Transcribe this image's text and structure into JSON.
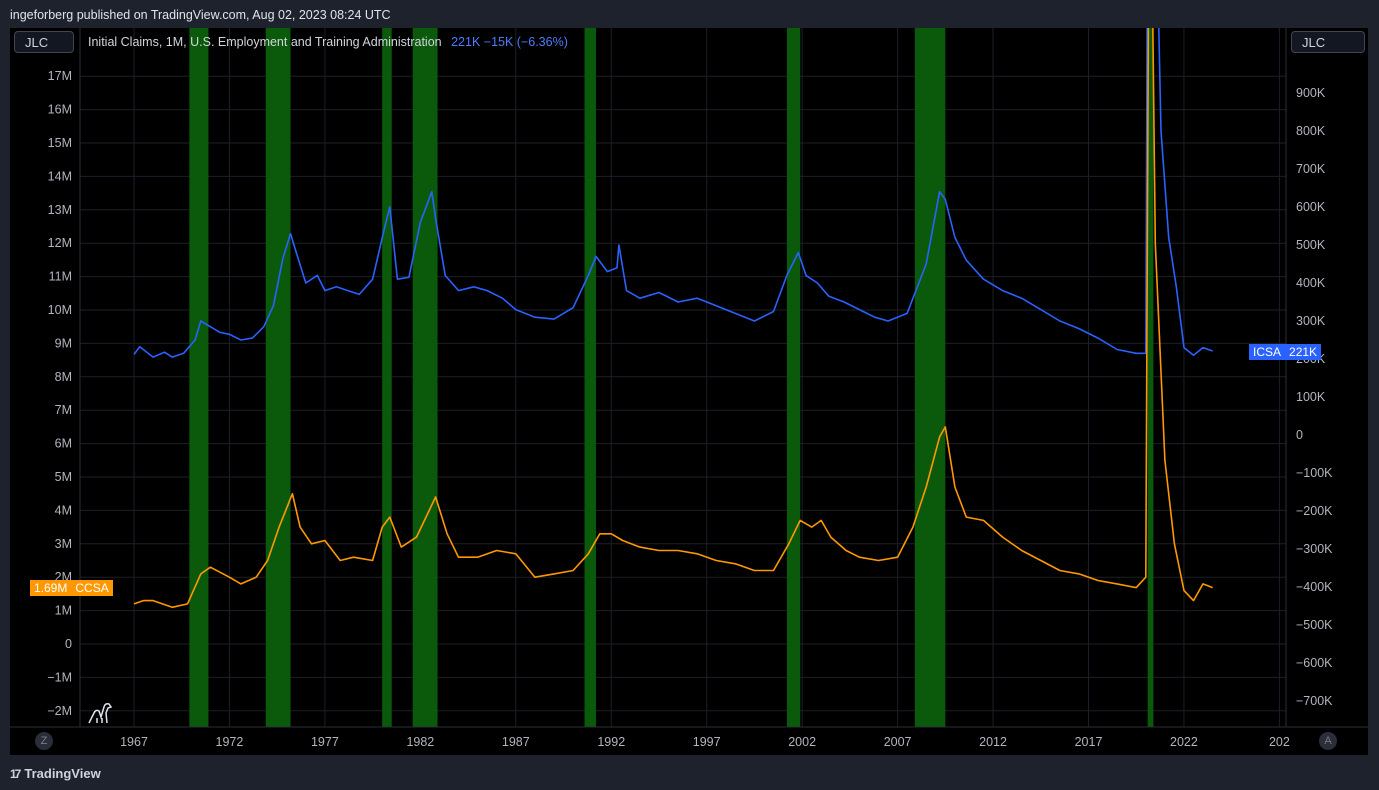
{
  "header": {
    "published": "ingeforberg published on TradingView.com, Aug 02, 2023 08:24 UTC"
  },
  "toolbar": {
    "left_symbol": "JLC",
    "right_symbol": "JLC"
  },
  "legend": {
    "name": "Initial Claims, 1M, U.S. Employment and Training Administration",
    "values": "221K  −15K (−6.36%)"
  },
  "badges": {
    "icsa_label": "ICSA",
    "icsa_value": "221K",
    "ccsa_value": "1.69M",
    "ccsa_label": "CCSA"
  },
  "footer": {
    "brand": "TradingView",
    "logo": "17",
    "z_button": "Z",
    "a_button": "A"
  },
  "colors": {
    "icsa": "#2962ff",
    "ccsa": "#ff9800",
    "recession": "#0b5a0b",
    "background": "#000000"
  },
  "chart_data": {
    "type": "line",
    "x_ticks": [
      "1967",
      "1972",
      "1977",
      "1982",
      "1987",
      "1992",
      "1997",
      "2002",
      "2007",
      "2012",
      "2017",
      "2022",
      "202"
    ],
    "left_axis_ticks": [
      "17M",
      "16M",
      "15M",
      "14M",
      "13M",
      "12M",
      "11M",
      "10M",
      "9M",
      "8M",
      "7M",
      "6M",
      "5M",
      "4M",
      "3M",
      "2M",
      "1M",
      "0",
      "−1M",
      "−2M"
    ],
    "right_axis_ticks": [
      "900K",
      "800K",
      "700K",
      "600K",
      "500K",
      "400K",
      "300K",
      "200K",
      "100K",
      "0",
      "−100K",
      "−200K",
      "−300K",
      "−400K",
      "−500K",
      "−600K",
      "−700K"
    ],
    "recessions": [
      [
        1969.9,
        1970.9
      ],
      [
        1973.9,
        1975.2
      ],
      [
        1980.0,
        1980.5
      ],
      [
        1981.6,
        1982.9
      ],
      [
        1990.6,
        1991.2
      ],
      [
        2001.2,
        2001.9
      ],
      [
        2007.9,
        2009.5
      ],
      [
        2020.1,
        2020.4
      ]
    ],
    "series": [
      {
        "name": "ICSA",
        "axis": "right",
        "x": [
          1967,
          1967.3,
          1968,
          1968.6,
          1969,
          1969.6,
          1970.2,
          1970.5,
          1971,
          1971.5,
          1972,
          1972.6,
          1973.2,
          1973.8,
          1974.3,
          1974.8,
          1975.2,
          1975.5,
          1976,
          1976.6,
          1977,
          1977.6,
          1978.2,
          1978.8,
          1979.5,
          1980.1,
          1980.4,
          1980.8,
          1981.4,
          1982.0,
          1982.6,
          1982.8,
          1983.3,
          1984,
          1984.8,
          1985.5,
          1986.3,
          1987,
          1988,
          1989,
          1990,
          1990.8,
          1991.2,
          1991.8,
          1992.3,
          1992.4,
          1992.8,
          1993.5,
          1994.5,
          1995.5,
          1996.5,
          1997.5,
          1998.5,
          1999.5,
          2000.5,
          2001.2,
          2001.8,
          2002.2,
          2002.8,
          2003.4,
          2004.2,
          2005,
          2005.8,
          2006.5,
          2007.5,
          2008.5,
          2009.2,
          2009.5,
          2010,
          2010.6,
          2011.5,
          2012.5,
          2013.5,
          2014.5,
          2015.5,
          2016.5,
          2017.5,
          2018.5,
          2019.5,
          2020.0,
          2020.15,
          2020.25,
          2020.5,
          2020.8,
          2021.2,
          2021.6,
          2022.0,
          2022.5,
          2023.0,
          2023.5
        ],
        "y": [
          212,
          232,
          205,
          218,
          205,
          215,
          250,
          300,
          285,
          270,
          265,
          250,
          255,
          285,
          340,
          465,
          530,
          480,
          400,
          420,
          380,
          390,
          380,
          370,
          410,
          540,
          600,
          410,
          415,
          560,
          640,
          570,
          420,
          380,
          390,
          380,
          360,
          330,
          310,
          305,
          335,
          420,
          470,
          430,
          440,
          500,
          380,
          360,
          375,
          350,
          360,
          340,
          320,
          300,
          325,
          420,
          480,
          420,
          400,
          365,
          350,
          330,
          310,
          300,
          320,
          450,
          640,
          620,
          520,
          460,
          410,
          380,
          360,
          330,
          300,
          280,
          255,
          225,
          215,
          215,
          2000,
          2600,
          1500,
          800,
          520,
          390,
          230,
          210,
          230,
          221
        ]
      },
      {
        "name": "CCSA",
        "axis": "left",
        "x": [
          1967,
          1967.5,
          1968,
          1969,
          1969.8,
          1970.5,
          1971,
          1972,
          1972.6,
          1973.4,
          1974,
          1974.6,
          1975.3,
          1975.7,
          1976.3,
          1977,
          1977.8,
          1978.5,
          1979.5,
          1980.0,
          1980.4,
          1981,
          1981.8,
          1982.8,
          1983.4,
          1984,
          1985,
          1986,
          1987,
          1988,
          1989,
          1990,
          1990.8,
          1991.4,
          1992,
          1992.6,
          1993.5,
          1994.5,
          1995.5,
          1996.5,
          1997.5,
          1998.5,
          1999.5,
          2000.5,
          2001.3,
          2001.9,
          2002.5,
          2003,
          2003.5,
          2004.3,
          2005,
          2006,
          2007,
          2007.8,
          2008.5,
          2009.2,
          2009.5,
          2010,
          2010.6,
          2011.5,
          2012.5,
          2013.5,
          2014.5,
          2015.5,
          2016.5,
          2017.5,
          2018.5,
          2019.5,
          2020.0,
          2020.15,
          2020.3,
          2020.5,
          2021,
          2021.5,
          2022,
          2022.5,
          2023,
          2023.5
        ],
        "y": [
          1.2,
          1.3,
          1.3,
          1.1,
          1.2,
          2.1,
          2.3,
          2.0,
          1.8,
          2.0,
          2.5,
          3.5,
          4.5,
          3.5,
          3.0,
          3.1,
          2.5,
          2.6,
          2.5,
          3.5,
          3.8,
          2.9,
          3.2,
          4.4,
          3.3,
          2.6,
          2.6,
          2.8,
          2.7,
          2.0,
          2.1,
          2.2,
          2.7,
          3.3,
          3.3,
          3.1,
          2.9,
          2.8,
          2.8,
          2.7,
          2.5,
          2.4,
          2.2,
          2.2,
          3.0,
          3.7,
          3.5,
          3.7,
          3.2,
          2.8,
          2.6,
          2.5,
          2.6,
          3.5,
          4.7,
          6.2,
          6.5,
          4.7,
          3.8,
          3.7,
          3.2,
          2.8,
          2.5,
          2.2,
          2.1,
          1.9,
          1.8,
          1.69,
          2.0,
          20,
          22,
          12,
          5.5,
          3.0,
          1.6,
          1.3,
          1.8,
          1.69
        ]
      }
    ]
  }
}
